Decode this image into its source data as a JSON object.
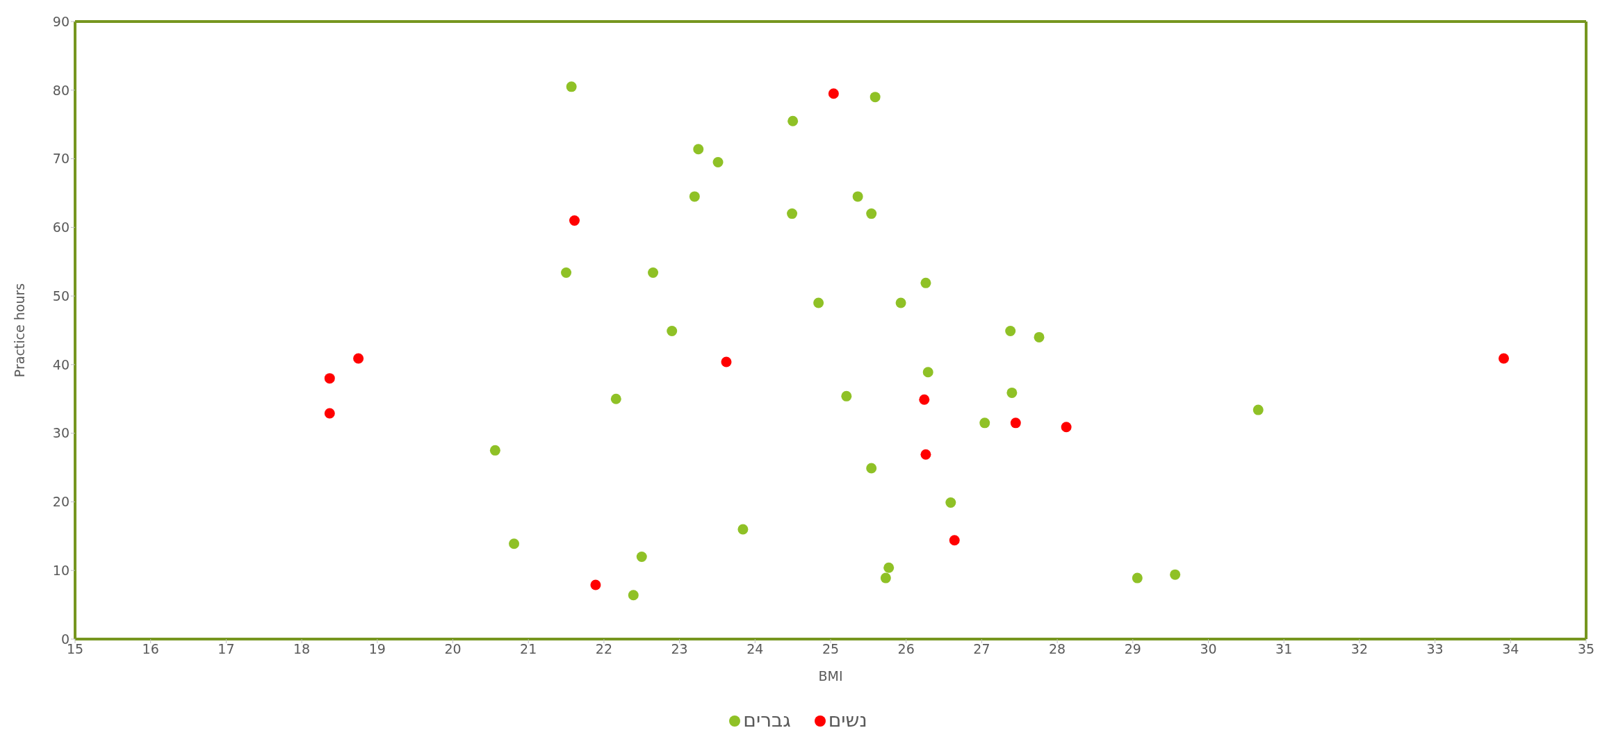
{
  "chart_data": {
    "type": "scatter",
    "xlabel": "BMI",
    "ylabel": "Practice hours",
    "xlim": [
      15,
      35
    ],
    "xticks": [
      15,
      16,
      17,
      18,
      19,
      20,
      21,
      22,
      23,
      24,
      25,
      26,
      27,
      28,
      29,
      30,
      31,
      32,
      33,
      34,
      35
    ],
    "ylim": [
      0,
      90
    ],
    "yticks": [
      0,
      10,
      20,
      30,
      40,
      50,
      60,
      70,
      80,
      90
    ],
    "grid": false,
    "legend": "bottom",
    "marker": "circle",
    "series": [
      {
        "name": "גברים",
        "color": "#8fc126",
        "x": [
          21.57,
          24.5,
          23.25,
          23.51,
          23.2,
          24.49,
          21.5,
          22.65,
          22.9,
          22.16,
          20.56,
          20.81,
          23.84,
          22.5,
          22.39,
          24.84,
          25.59,
          25.36,
          25.54,
          26.26,
          25.93,
          27.38,
          27.76,
          26.29,
          25.21,
          27.4,
          30.66,
          27.04,
          25.54,
          26.59,
          25.77,
          25.73,
          29.06,
          29.56
        ],
        "values": [
          80.5,
          75.5,
          71.4,
          69.5,
          64.5,
          62,
          53.4,
          53.4,
          44.9,
          35,
          27.5,
          13.9,
          16,
          12,
          6.4,
          49,
          79,
          64.5,
          62,
          51.9,
          49,
          44.9,
          44,
          38.9,
          35.4,
          35.9,
          33.4,
          31.5,
          24.9,
          19.9,
          10.4,
          8.9,
          8.9,
          9.4
        ]
      },
      {
        "name": "נשים",
        "color": "#ff0000",
        "x": [
          21.61,
          18.37,
          18.75,
          18.37,
          23.62,
          21.89,
          25.04,
          26.24,
          27.45,
          28.12,
          26.26,
          26.64,
          33.91
        ],
        "values": [
          61,
          38,
          40.9,
          32.9,
          40.4,
          7.9,
          79.5,
          34.9,
          31.5,
          30.9,
          26.9,
          14.4,
          40.9
        ]
      }
    ]
  }
}
